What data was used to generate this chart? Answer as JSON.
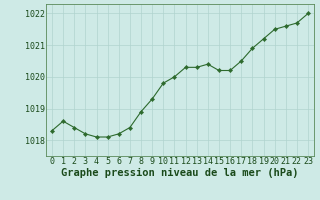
{
  "x": [
    0,
    1,
    2,
    3,
    4,
    5,
    6,
    7,
    8,
    9,
    10,
    11,
    12,
    13,
    14,
    15,
    16,
    17,
    18,
    19,
    20,
    21,
    22,
    23
  ],
  "y": [
    1018.3,
    1018.6,
    1018.4,
    1018.2,
    1018.1,
    1018.1,
    1018.2,
    1018.4,
    1018.9,
    1019.3,
    1019.8,
    1020.0,
    1020.3,
    1020.3,
    1020.4,
    1020.2,
    1020.2,
    1020.5,
    1020.9,
    1021.2,
    1021.5,
    1021.6,
    1021.7,
    1022.0
  ],
  "line_color": "#2d6a2d",
  "marker": "D",
  "marker_size": 2.2,
  "bg_color": "#ceeae6",
  "grid_color": "#b0d4ce",
  "xlabel": "Graphe pression niveau de la mer (hPa)",
  "xlabel_color": "#1a4a1a",
  "xlabel_fontsize": 7.5,
  "tick_color": "#1a4a1a",
  "tick_fontsize": 6.0,
  "ylim": [
    1017.5,
    1022.3
  ],
  "yticks": [
    1018,
    1019,
    1020,
    1021,
    1022
  ],
  "xlim": [
    -0.5,
    23.5
  ],
  "xticks": [
    0,
    1,
    2,
    3,
    4,
    5,
    6,
    7,
    8,
    9,
    10,
    11,
    12,
    13,
    14,
    15,
    16,
    17,
    18,
    19,
    20,
    21,
    22,
    23
  ]
}
